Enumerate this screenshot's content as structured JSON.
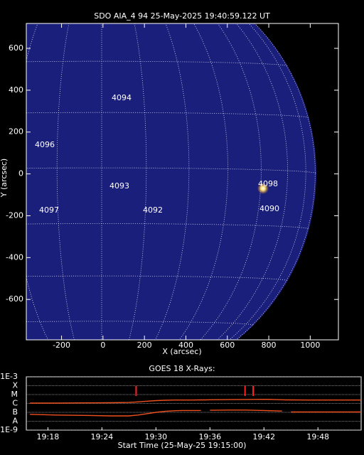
{
  "chart_data": [
    {
      "type": "map",
      "title": "SDO AIA_4 94 25-May-2025 19:40:59.122 UT",
      "x_label": "X (arcsec)",
      "y_label": "Y (arcsec)",
      "xlim": [
        -370,
        1136
      ],
      "ylim": [
        -793,
        719
      ],
      "xticks": [
        -200,
        0,
        200,
        400,
        600,
        800,
        1000
      ],
      "yticks": [
        -600,
        -400,
        -200,
        0,
        200,
        400,
        600
      ],
      "annotations": [
        "4094",
        "4096",
        "4093",
        "4092",
        "4097",
        "4098",
        "4090"
      ]
    },
    {
      "type": "line",
      "title": "GOES 18 X-Rays:",
      "x_label": "Start Time (25-May-25 19:15:00)",
      "x": [
        1,
        4,
        7,
        10,
        12,
        13,
        14,
        15,
        16,
        17,
        18,
        19,
        20,
        20.5,
        21,
        23,
        25,
        27,
        28,
        29,
        29.5,
        30,
        32,
        35,
        37.8
      ],
      "xlim": [
        0.6,
        37.8
      ],
      "xticks": [
        {
          "value": 3,
          "label": "19:18"
        },
        {
          "value": 9,
          "label": "19:24"
        },
        {
          "value": 15,
          "label": "19:30"
        },
        {
          "value": 21,
          "label": "19:36"
        },
        {
          "value": 27,
          "label": "19:42"
        },
        {
          "value": 33,
          "label": "19:48"
        }
      ],
      "ylim": [
        1e-09,
        0.001
      ],
      "log_scale": true,
      "yticks": [
        {
          "value": 0.001,
          "label": "1E-3"
        },
        {
          "value": 0.0001,
          "label": "X"
        },
        {
          "value": 1e-05,
          "label": "M"
        },
        {
          "value": 1e-06,
          "label": "C"
        },
        {
          "value": 1e-07,
          "label": "B"
        },
        {
          "value": 1e-08,
          "label": "A"
        },
        {
          "value": 1e-09,
          "label": "1E-9"
        }
      ],
      "grid": true,
      "grid_color": "#ff9933",
      "series": [
        {
          "color": "#f0501e",
          "values": [
            1.1e-06,
            1.1e-06,
            1.15e-06,
            1.2e-06,
            1.3e-06,
            1.5e-06,
            1.8e-06,
            2.1e-06,
            2.3e-06,
            2.4e-06,
            2.4e-06,
            2.4e-06,
            2.5e-06,
            2.5e-06,
            2.6e-06,
            2.7e-06,
            2.8e-06,
            2.9e-06,
            2.8e-06,
            2.6e-06,
            2.5e-06,
            2.5e-06,
            2.4e-06,
            2.4e-06,
            2.4e-06
          ]
        },
        {
          "color": "#f0501e",
          "values": [
            6e-08,
            5e-08,
            4.5e-08,
            4e-08,
            4e-08,
            5e-08,
            7e-08,
            1e-07,
            1.3e-07,
            1.5e-07,
            1.6e-07,
            1.6e-07,
            1.6e-07,
            null,
            1.7e-07,
            1.8e-07,
            1.8e-07,
            1.6e-07,
            1.5e-07,
            1.4e-07,
            null,
            1.1e-07,
            1.1e-07,
            1.1e-07,
            1.1e-07
          ]
        }
      ],
      "events": [
        12.8,
        24.9,
        25.8
      ],
      "event_color": "#ff2020"
    }
  ]
}
